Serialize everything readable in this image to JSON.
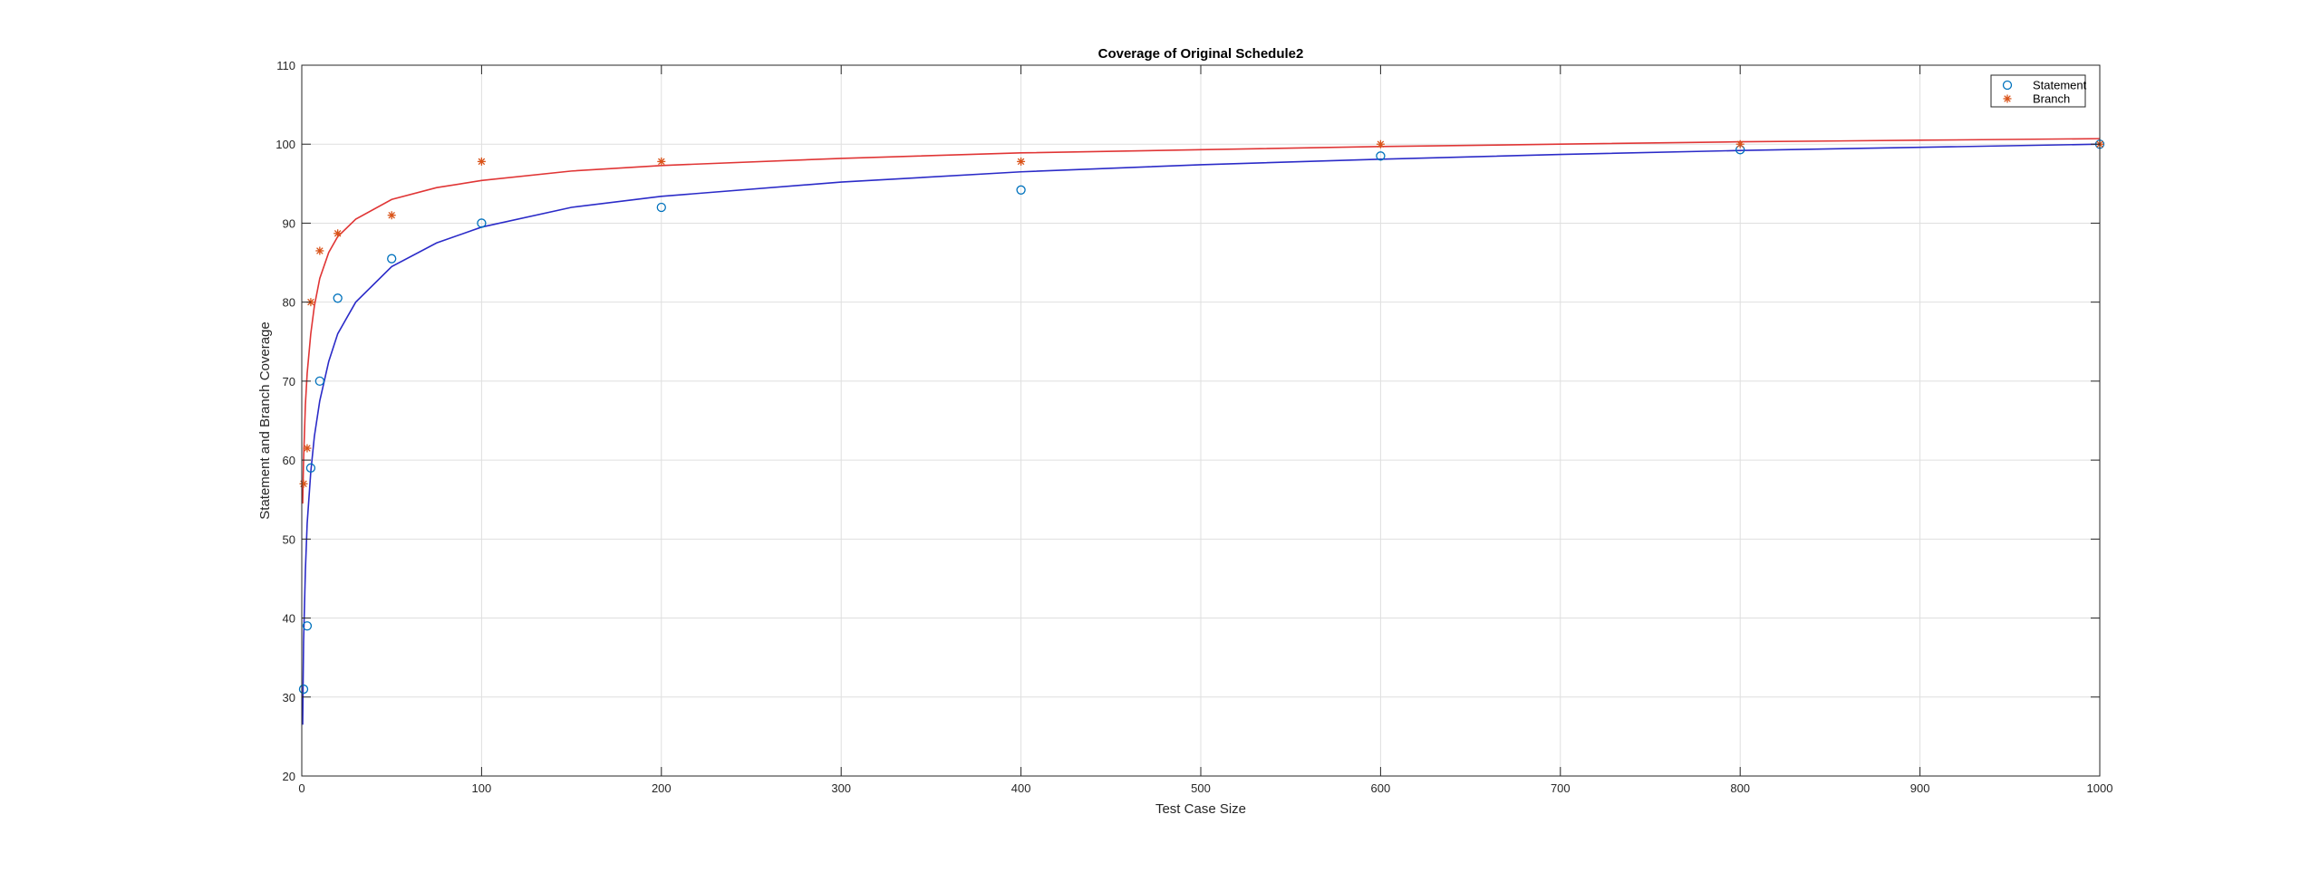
{
  "chart_data": {
    "type": "scatter",
    "title": "Coverage of Original Schedule2",
    "xlabel": "Test Case Size",
    "ylabel": "Statement and Branch Coverage",
    "xlim": [
      0,
      1000
    ],
    "ylim": [
      20,
      110
    ],
    "xticks": [
      "0",
      "100",
      "200",
      "300",
      "400",
      "500",
      "600",
      "700",
      "800",
      "900",
      "1000"
    ],
    "yticks": [
      "20",
      "30",
      "40",
      "50",
      "60",
      "70",
      "80",
      "90",
      "100",
      "110"
    ],
    "grid": true,
    "legend_position": "top-right",
    "series": [
      {
        "name": "Statement",
        "marker": "circle",
        "color": "#0072bd",
        "x": [
          1,
          3,
          5,
          10,
          20,
          50,
          100,
          200,
          400,
          600,
          800,
          1000
        ],
        "y": [
          31,
          39,
          59,
          70,
          80.5,
          85.5,
          90,
          92,
          94.2,
          98.5,
          99.3,
          100
        ]
      },
      {
        "name": "Branch",
        "marker": "star",
        "color": "#d95319",
        "x": [
          1,
          3,
          5,
          10,
          20,
          50,
          100,
          200,
          400,
          600,
          800,
          1000
        ],
        "y": [
          57,
          61.5,
          80,
          86.5,
          88.7,
          91,
          97.8,
          97.8,
          97.8,
          100,
          100,
          100
        ]
      }
    ],
    "fits": [
      {
        "color": "#2b2bc8",
        "x": [
          0.5,
          1,
          2,
          3,
          5,
          7,
          10,
          15,
          20,
          30,
          50,
          75,
          100,
          150,
          200,
          300,
          400,
          500,
          600,
          700,
          800,
          900,
          1000
        ],
        "y": [
          26.5,
          37,
          46,
          52,
          58.5,
          63,
          67.5,
          72.5,
          76,
          80,
          84.5,
          87.5,
          89.5,
          92,
          93.4,
          95.2,
          96.5,
          97.4,
          98.1,
          98.7,
          99.2,
          99.6,
          100
        ]
      },
      {
        "color": "#e03535",
        "x": [
          0.5,
          1,
          2,
          3,
          5,
          7,
          10,
          15,
          20,
          30,
          50,
          75,
          100,
          150,
          200,
          300,
          400,
          500,
          600,
          700,
          800,
          900,
          1000
        ],
        "y": [
          54.5,
          60,
          67,
          71,
          76,
          79.5,
          83,
          86.3,
          88.3,
          90.5,
          93,
          94.5,
          95.4,
          96.6,
          97.3,
          98.2,
          98.9,
          99.3,
          99.7,
          100,
          100.3,
          100.5,
          100.7
        ]
      }
    ]
  }
}
